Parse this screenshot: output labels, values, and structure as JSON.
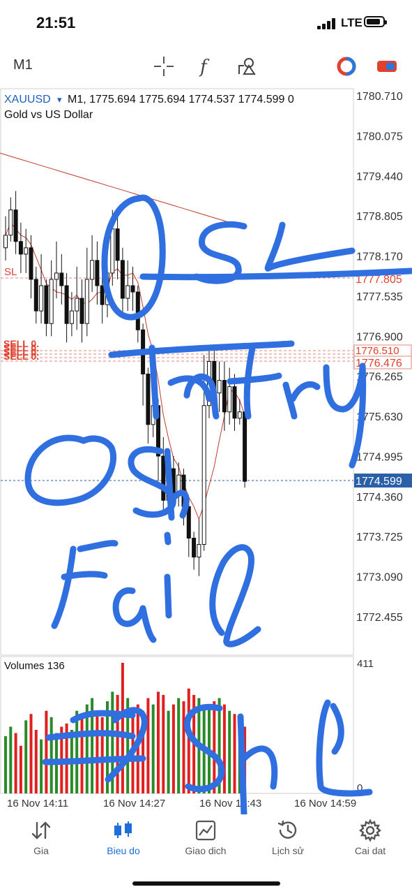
{
  "status": {
    "time": "21:51",
    "network": "LTE"
  },
  "toolbar": {
    "timeframe": "M1"
  },
  "chart": {
    "symbol": "XAUUSD",
    "symbol_suffix": "▾",
    "header_values": "M1, 1775.694 1775.694 1774.537 1774.599 0",
    "description": "Gold vs US Dollar",
    "current_price": "1774.599",
    "sl_label": "SL",
    "sl_price": "1777.805",
    "sell_label": "SELL 0.",
    "entry_price": "1776.476",
    "hidden_price": "1776.510",
    "volumes_label": "Volumes 136",
    "volume_max": "411",
    "volume_min": "0"
  },
  "chart_data": {
    "type": "candlestick",
    "price_axis_ticks": [
      1780.71,
      1780.075,
      1779.44,
      1778.805,
      1778.17,
      1777.805,
      1777.535,
      1776.9,
      1776.265,
      1775.63,
      1774.995,
      1774.36,
      1773.725,
      1773.09,
      1772.455
    ],
    "time_ticks": [
      "16 Nov 14:11",
      "16 Nov 14:27",
      "16 Nov 14:43",
      "16 Nov 14:59"
    ],
    "candles": [
      [
        1778.3,
        1778.5,
        1778.8,
        1778.1
      ],
      [
        1778.5,
        1778.9,
        1779.1,
        1778.4
      ],
      [
        1778.9,
        1778.4,
        1779.2,
        1778.2
      ],
      [
        1778.4,
        1778.2,
        1778.7,
        1777.9
      ],
      [
        1778.2,
        1778.3,
        1778.6,
        1777.9
      ],
      [
        1778.3,
        1777.8,
        1778.5,
        1777.5
      ],
      [
        1777.8,
        1777.3,
        1778.0,
        1777.1
      ],
      [
        1777.3,
        1777.7,
        1778.2,
        1777.1
      ],
      [
        1777.7,
        1777.1,
        1777.8,
        1776.9
      ],
      [
        1777.1,
        1777.8,
        1778.1,
        1776.9
      ],
      [
        1777.8,
        1777.9,
        1778.4,
        1777.5
      ],
      [
        1777.9,
        1777.7,
        1778.2,
        1777.4
      ],
      [
        1777.7,
        1777.1,
        1777.9,
        1776.8
      ],
      [
        1777.1,
        1777.3,
        1777.6,
        1776.9
      ],
      [
        1777.3,
        1777.5,
        1778.0,
        1777.0
      ],
      [
        1777.5,
        1777.1,
        1777.8,
        1776.8
      ],
      [
        1777.1,
        1777.8,
        1778.3,
        1776.9
      ],
      [
        1777.8,
        1778.1,
        1778.5,
        1777.6
      ],
      [
        1778.1,
        1777.7,
        1778.4,
        1777.4
      ],
      [
        1777.7,
        1777.4,
        1778.0,
        1777.1
      ],
      [
        1777.4,
        1777.9,
        1778.6,
        1777.2
      ],
      [
        1777.9,
        1778.6,
        1778.9,
        1777.7
      ],
      [
        1778.6,
        1778.1,
        1778.8,
        1777.8
      ],
      [
        1778.1,
        1777.5,
        1778.3,
        1777.2
      ],
      [
        1777.5,
        1777.7,
        1778.1,
        1777.3
      ],
      [
        1777.7,
        1777.6,
        1778.0,
        1777.3
      ],
      [
        1777.6,
        1777.0,
        1777.7,
        1776.8
      ],
      [
        1777.0,
        1776.3,
        1777.1,
        1775.8
      ],
      [
        1776.3,
        1775.5,
        1776.4,
        1775.2
      ],
      [
        1775.5,
        1775.8,
        1776.1,
        1775.3
      ],
      [
        1775.8,
        1775.0,
        1775.9,
        1774.6
      ],
      [
        1775.0,
        1774.3,
        1775.3,
        1774.1
      ],
      [
        1774.3,
        1774.8,
        1775.1,
        1774.1
      ],
      [
        1774.8,
        1774.4,
        1775.0,
        1774.1
      ],
      [
        1774.4,
        1774.7,
        1774.9,
        1774.2
      ],
      [
        1774.7,
        1774.2,
        1774.8,
        1773.9
      ],
      [
        1774.2,
        1773.7,
        1774.3,
        1773.4
      ],
      [
        1773.7,
        1773.4,
        1773.8,
        1773.2
      ],
      [
        1773.4,
        1773.6,
        1774.0,
        1773.1
      ],
      [
        1773.6,
        1775.8,
        1776.6,
        1773.5
      ],
      [
        1775.8,
        1776.5,
        1776.7,
        1775.6
      ],
      [
        1776.5,
        1776.0,
        1776.7,
        1775.8
      ],
      [
        1776.0,
        1776.2,
        1776.5,
        1775.7
      ],
      [
        1776.2,
        1775.7,
        1776.5,
        1775.4
      ],
      [
        1775.7,
        1776.1,
        1776.4,
        1775.5
      ],
      [
        1776.1,
        1775.6,
        1776.3,
        1775.4
      ],
      [
        1775.6,
        1775.7,
        1775.9,
        1775.5
      ],
      [
        1775.7,
        1774.6,
        1775.7,
        1774.5
      ]
    ],
    "moving_average": [
      1779.8,
      1779.75,
      1779.7,
      1779.65,
      1779.6,
      1779.55,
      1779.5,
      1779.45,
      1779.4,
      1779.35,
      1779.3,
      1779.25,
      1779.2,
      1779.15,
      1779.1,
      1779.05,
      1779.0,
      1778.95,
      1778.9,
      1778.85,
      1778.8,
      1778.75,
      1778.7,
      1778.65
    ],
    "volumes": [
      180,
      210,
      190,
      150,
      230,
      250,
      200,
      170,
      260,
      240,
      190,
      210,
      220,
      200,
      260,
      250,
      280,
      300,
      260,
      240,
      290,
      320,
      310,
      411,
      300,
      270,
      280,
      260,
      300,
      280,
      320,
      310,
      260,
      280,
      300,
      290,
      330,
      310,
      300,
      280,
      270,
      290,
      300,
      280,
      260,
      250,
      230,
      210
    ]
  }
}
